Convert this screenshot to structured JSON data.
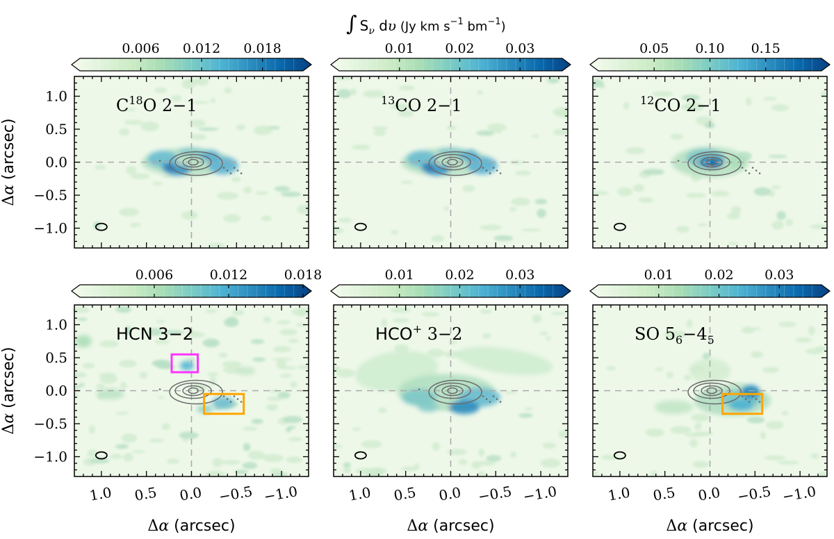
{
  "chart_data": {
    "type": "heatmap",
    "figure": {
      "colorbar_title": "∫S_ν dυ (Jy km s⁻¹ bm⁻¹)",
      "colorbar_title_parts": {
        "integral": "∫",
        "s": "S",
        "nu": "ν",
        "dv": "dυ",
        "unit_open": "(Jy km s",
        "exp_neg1": "−1",
        "unit_mid": " bm",
        "unit_close": ")"
      },
      "xlabel": "Δα (arcsec)",
      "ylabel": "Δα (arcsec)",
      "colormap": [
        "#f7fcf0",
        "#e0f3db",
        "#ccebc5",
        "#a8ddb5",
        "#7bccc4",
        "#4eb3d3",
        "#2b8cbe",
        "#0868ac",
        "#084081"
      ],
      "axis_ticks_x": [
        "1.0",
        "0.5",
        "0.0",
        "−0.5",
        "−1.0"
      ],
      "axis_ticks_y": [
        "1.0",
        "0.5",
        "0.0",
        "−0.5",
        "−1.0"
      ],
      "xlim": [
        1.3,
        -1.3
      ],
      "ylim": [
        -1.3,
        1.3
      ],
      "x_tick_values": [
        1.0,
        0.5,
        0.0,
        -0.5,
        -1.0
      ],
      "y_tick_values": [
        1.0,
        0.5,
        0.0,
        -0.5,
        -1.0
      ]
    },
    "panels": [
      {
        "label": "C18O 2−1",
        "label_parts": {
          "pre": "C",
          "sup": "18",
          "post": "O 2−1"
        },
        "colorbar_ticks": [
          "0.006",
          "0.012",
          "0.018"
        ],
        "colorbar_tick_values": [
          0.006,
          0.012,
          0.018
        ],
        "colorbar_range": [
          0.0,
          0.022
        ],
        "emission": "ring",
        "boxes": []
      },
      {
        "label": "13CO 2−1",
        "label_parts": {
          "pre": "",
          "sup": "13",
          "post": "CO 2−1"
        },
        "colorbar_ticks": [
          "0.01",
          "0.02",
          "0.03"
        ],
        "colorbar_tick_values": [
          0.01,
          0.02,
          0.03
        ],
        "colorbar_range": [
          0.0,
          0.037
        ],
        "emission": "ring",
        "boxes": []
      },
      {
        "label": "12CO 2−1",
        "label_parts": {
          "pre": "",
          "sup": "12",
          "post": "CO 2−1"
        },
        "colorbar_ticks": [
          "0.05",
          "0.10",
          "0.15"
        ],
        "colorbar_tick_values": [
          0.05,
          0.1,
          0.15
        ],
        "colorbar_range": [
          0.0,
          0.2
        ],
        "emission": "central",
        "boxes": []
      },
      {
        "label": "HCN 3−2",
        "label_parts": {
          "pre": "HCN 3−2",
          "sup": "",
          "post": ""
        },
        "colorbar_ticks": [
          "0.006",
          "0.012",
          "0.018"
        ],
        "colorbar_tick_values": [
          0.006,
          0.012,
          0.018
        ],
        "colorbar_range": [
          0.0,
          0.018
        ],
        "emission": "patchy",
        "boxes": [
          {
            "color": "#ff33ff",
            "x0": 0.22,
            "x1": -0.07,
            "y0": 0.28,
            "y1": 0.55
          },
          {
            "color": "#ffa500",
            "x0": -0.14,
            "x1": -0.58,
            "y0": -0.35,
            "y1": -0.05
          }
        ]
      },
      {
        "label": "HCO+ 3−2",
        "label_parts": {
          "pre": "HCO",
          "sup": "+",
          "post": " 3−2"
        },
        "colorbar_ticks": [
          "0.01",
          "0.02",
          "0.03"
        ],
        "colorbar_tick_values": [
          0.01,
          0.02,
          0.03
        ],
        "colorbar_range": [
          0.0,
          0.037
        ],
        "emission": "arc",
        "boxes": []
      },
      {
        "label": "SO 56−45",
        "label_parts": {
          "pre": "SO 5",
          "sub1": "6",
          "mid": "−4",
          "sub2": "5"
        },
        "colorbar_ticks": [
          "0.01",
          "0.02",
          "0.03"
        ],
        "colorbar_tick_values": [
          0.01,
          0.02,
          0.03
        ],
        "colorbar_range": [
          0.0,
          0.037
        ],
        "emission": "west",
        "boxes": [
          {
            "color": "#ffa500",
            "x0": -0.14,
            "x1": -0.58,
            "y0": -0.35,
            "y1": -0.05
          }
        ]
      }
    ]
  }
}
